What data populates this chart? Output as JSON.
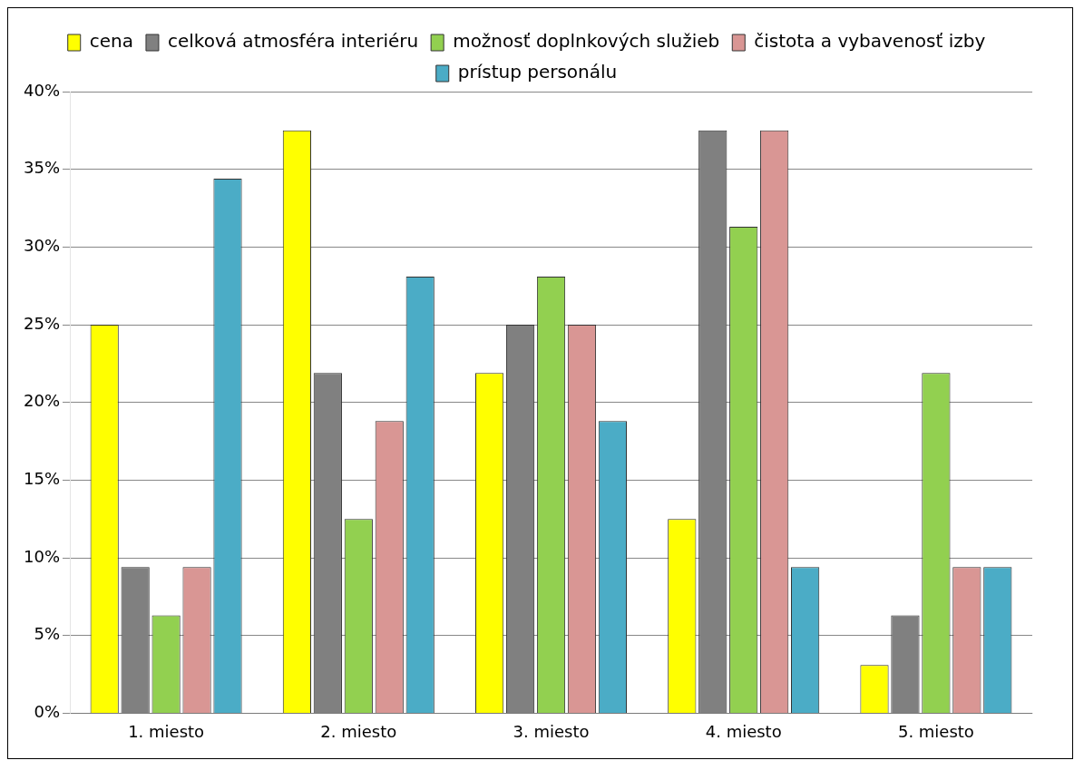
{
  "chart_data": {
    "type": "bar",
    "categories": [
      "1. miesto",
      "2. miesto",
      "3. miesto",
      "4. miesto",
      "5. miesto"
    ],
    "series": [
      {
        "name": "cena",
        "color": "#ffff00",
        "values": [
          25,
          37.5,
          21.9,
          12.5,
          3.1
        ]
      },
      {
        "name": "celková atmosféra interiéru",
        "color": "#808080",
        "values": [
          9.4,
          21.9,
          25,
          37.5,
          6.3
        ]
      },
      {
        "name": "možnosť doplnkových služieb",
        "color": "#92d050",
        "values": [
          6.3,
          12.5,
          28.1,
          31.3,
          21.9
        ]
      },
      {
        "name": "čistota a vybavenosť izby",
        "color": "#d99694",
        "values": [
          9.4,
          18.8,
          25,
          37.5,
          9.4
        ]
      },
      {
        "name": "prístup personálu",
        "color": "#4bacc6",
        "values": [
          34.4,
          28.1,
          18.8,
          9.4,
          9.4
        ]
      }
    ],
    "ylim": [
      0,
      40
    ],
    "yticks": [
      {
        "value": 0,
        "label": "0%"
      },
      {
        "value": 5,
        "label": "5%"
      },
      {
        "value": 10,
        "label": "10%"
      },
      {
        "value": 15,
        "label": "15%"
      },
      {
        "value": 20,
        "label": "20%"
      },
      {
        "value": 25,
        "label": "25%"
      },
      {
        "value": 30,
        "label": "30%"
      },
      {
        "value": 35,
        "label": "35%"
      },
      {
        "value": 40,
        "label": "40%"
      }
    ],
    "grid": "y",
    "legend": "top"
  }
}
